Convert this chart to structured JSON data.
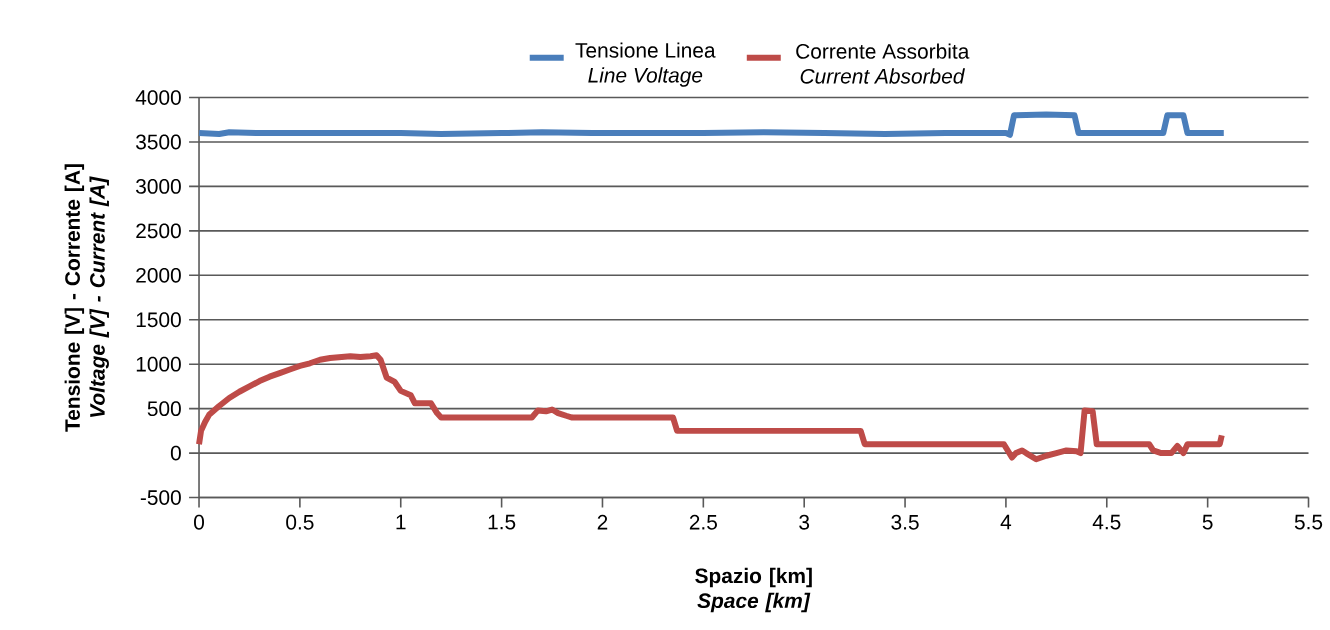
{
  "chart_data": {
    "type": "line",
    "xlabel": "Spazio [km] *Space [km]*",
    "ylabel": "Tensione [V] - Corrente [A] *Voltage [V] - Current [A]*",
    "xlim": [
      0,
      5.5
    ],
    "xticks": [
      0,
      0.5,
      1,
      1.5,
      2,
      2.5,
      3,
      3.5,
      4,
      4.5,
      5,
      5.5
    ],
    "ylim": [
      -500,
      4000
    ],
    "yticks": [
      -500,
      0,
      500,
      1000,
      1500,
      2000,
      2500,
      3000,
      3500,
      4000
    ],
    "grid": "y",
    "legend": "top",
    "marker": "none",
    "line_style": "solid",
    "series": [
      {
        "name": "Tensione Linea *Line Voltage*",
        "color": "#4a7ebb",
        "x": [
          0,
          0.1,
          0.15,
          0.3,
          0.5,
          0.7,
          1.0,
          1.2,
          1.5,
          1.7,
          1.95,
          2.2,
          2.5,
          2.8,
          3.1,
          3.4,
          3.7,
          4.0,
          4.02,
          4.04,
          4.2,
          4.34,
          4.36,
          4.6,
          4.78,
          4.8,
          4.88,
          4.9,
          5.08
        ],
        "values": [
          3600,
          3590,
          3610,
          3600,
          3600,
          3600,
          3600,
          3590,
          3600,
          3610,
          3600,
          3600,
          3600,
          3610,
          3600,
          3590,
          3600,
          3600,
          3580,
          3800,
          3810,
          3800,
          3600,
          3600,
          3600,
          3800,
          3800,
          3600,
          3600
        ]
      },
      {
        "name": "Corrente Assorbita *Current Absorbed*",
        "color": "#be4b48",
        "x": [
          0,
          0.01,
          0.03,
          0.05,
          0.1,
          0.15,
          0.2,
          0.25,
          0.3,
          0.35,
          0.4,
          0.45,
          0.5,
          0.55,
          0.6,
          0.65,
          0.7,
          0.75,
          0.8,
          0.85,
          0.88,
          0.9,
          0.93,
          0.97,
          1.0,
          1.05,
          1.07,
          1.15,
          1.18,
          1.2,
          1.65,
          1.68,
          1.72,
          1.75,
          1.78,
          1.82,
          1.85,
          2.35,
          2.37,
          3.28,
          3.3,
          3.99,
          4.03,
          4.05,
          4.08,
          4.1,
          4.15,
          4.2,
          4.25,
          4.3,
          4.35,
          4.37,
          4.39,
          4.43,
          4.45,
          4.71,
          4.73,
          4.77,
          4.82,
          4.85,
          4.88,
          4.9,
          5.06,
          5.07
        ],
        "values": [
          100,
          250,
          350,
          430,
          530,
          620,
          690,
          750,
          810,
          860,
          900,
          940,
          980,
          1010,
          1050,
          1070,
          1080,
          1090,
          1080,
          1090,
          1100,
          1050,
          850,
          800,
          700,
          650,
          560,
          560,
          450,
          400,
          400,
          480,
          470,
          490,
          450,
          420,
          400,
          400,
          250,
          250,
          100,
          100,
          -50,
          0,
          30,
          0,
          -70,
          -30,
          0,
          30,
          20,
          0,
          480,
          470,
          100,
          100,
          30,
          0,
          0,
          80,
          0,
          100,
          100,
          200
        ]
      }
    ]
  }
}
